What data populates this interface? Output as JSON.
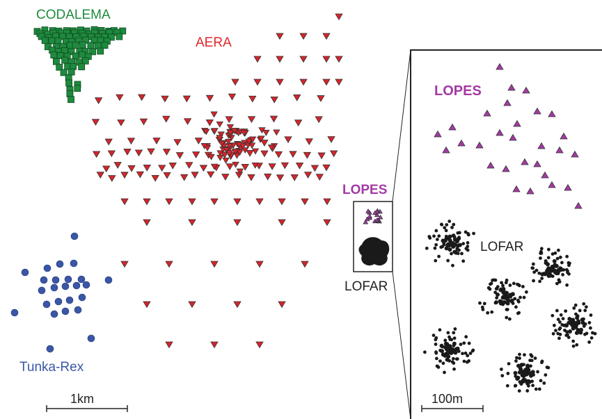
{
  "labels": {
    "codalema": "CODALEMA",
    "aera": "AERA",
    "lopes_main": "LOPES",
    "lofar_main": "LOFAR",
    "tunka": "Tunka-Rex",
    "scale_main": "1km",
    "lopes_inset": "LOPES",
    "lofar_inset": "LOFAR",
    "scale_inset": "100m"
  },
  "colors": {
    "codalema": "#1e8a3e",
    "aera": "#d6242a",
    "lopes": "#a33aa3",
    "tunka": "#3a56a8",
    "lofar": "#1a1a1a",
    "outline": "#333333"
  },
  "markers": {
    "codalema": "green-square",
    "aera": "red-down-triangle",
    "lopes": "purple-up-triangle",
    "tunka": "blue-circle",
    "lofar": "black-dot-cluster"
  }
}
